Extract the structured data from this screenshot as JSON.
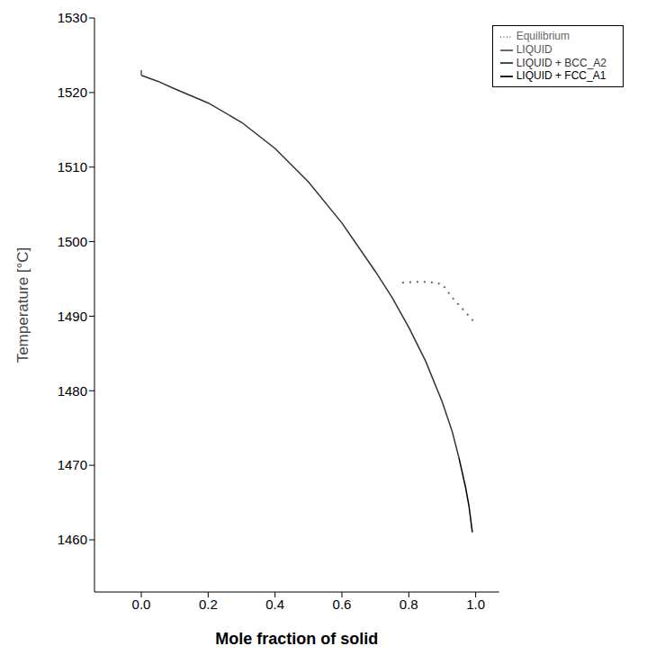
{
  "chart_data": {
    "type": "line",
    "x_label": "Mole fraction of solid",
    "y_label": "Temperature [°C]",
    "xlim": [
      -0.14,
      1.07
    ],
    "ylim": [
      1453,
      1530
    ],
    "xticks": [
      {
        "value": 0,
        "label": "0.0"
      },
      0.2,
      0.4,
      0.6,
      0.8,
      {
        "value": 1,
        "label": "1.0"
      }
    ],
    "yticks": [
      1460,
      1470,
      1480,
      1490,
      1500,
      1510,
      1520,
      1530
    ],
    "grid": false,
    "legend": "upper right",
    "series": [
      {
        "name": "LIQUID",
        "color": "#555555",
        "line_style": "solid",
        "x": [
          0,
          0
        ],
        "values": [
          1523,
          1522.3
        ]
      },
      {
        "name": "LIQUID + BCC_A2",
        "color": "#333333",
        "line_style": "solid",
        "x": [
          0,
          0.05,
          0.1,
          0.2,
          0.3,
          0.4,
          0.5,
          0.6,
          0.7,
          0.75,
          0.8,
          0.85,
          0.9,
          0.93,
          0.95
        ],
        "values": [
          1522.3,
          1521.5,
          1520.5,
          1518.6,
          1516,
          1512.5,
          1508,
          1502.5,
          1496,
          1492.5,
          1488.5,
          1484,
          1478.5,
          1474.5,
          1471
        ]
      },
      {
        "name": "LIQUID + FCC_A1",
        "color": "#000000",
        "line_style": "solid",
        "x": [
          0.95,
          0.97,
          0.98,
          0.99
        ],
        "values": [
          1471,
          1467,
          1464.5,
          1461
        ]
      },
      {
        "name": "Equilibrium",
        "color": "#666666",
        "line_style": "dotted",
        "x": [
          0.78,
          0.82,
          0.86,
          0.9,
          0.93,
          0.96,
          1.0
        ],
        "values": [
          1494.5,
          1494.6,
          1494.6,
          1494.3,
          1492.5,
          1491,
          1489
        ]
      }
    ]
  }
}
